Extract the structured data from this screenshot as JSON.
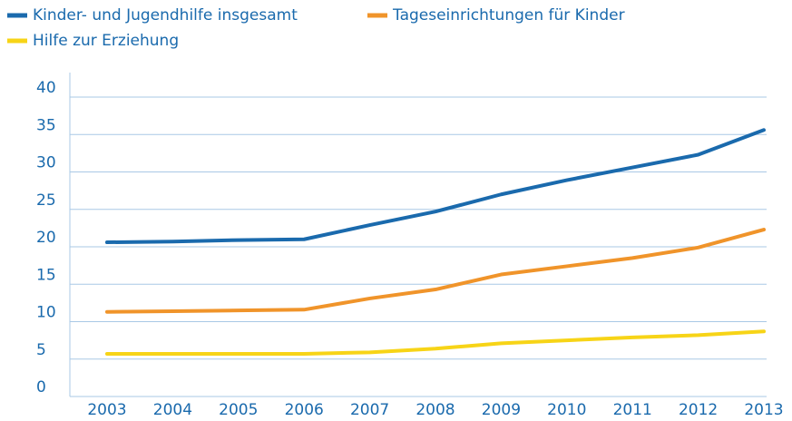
{
  "chart_data": {
    "type": "line",
    "categories": [
      "2003",
      "2004",
      "2005",
      "2006",
      "2007",
      "2008",
      "2009",
      "2010",
      "2011",
      "2012",
      "2013"
    ],
    "series": [
      {
        "name": "Kinder- und Jugendhilfe insgesamt",
        "color": "#1a6aad",
        "values": [
          20.6,
          20.7,
          20.9,
          21.0,
          22.9,
          24.7,
          27.0,
          28.9,
          30.6,
          32.3,
          35.6
        ]
      },
      {
        "name": "Tageseinrichtungen für Kinder",
        "color": "#f0942a",
        "values": [
          11.3,
          11.4,
          11.5,
          11.6,
          13.1,
          14.3,
          16.3,
          17.4,
          18.5,
          19.9,
          22.3
        ]
      },
      {
        "name": "Hilfe zur Erziehung",
        "color": "#f7d417",
        "values": [
          5.7,
          5.7,
          5.7,
          5.7,
          5.9,
          6.4,
          7.1,
          7.5,
          7.9,
          8.2,
          8.7
        ]
      }
    ],
    "ylim": [
      0,
      40
    ],
    "yticks": [
      0,
      5,
      10,
      15,
      20,
      25,
      30,
      35,
      40
    ],
    "grid": true
  }
}
